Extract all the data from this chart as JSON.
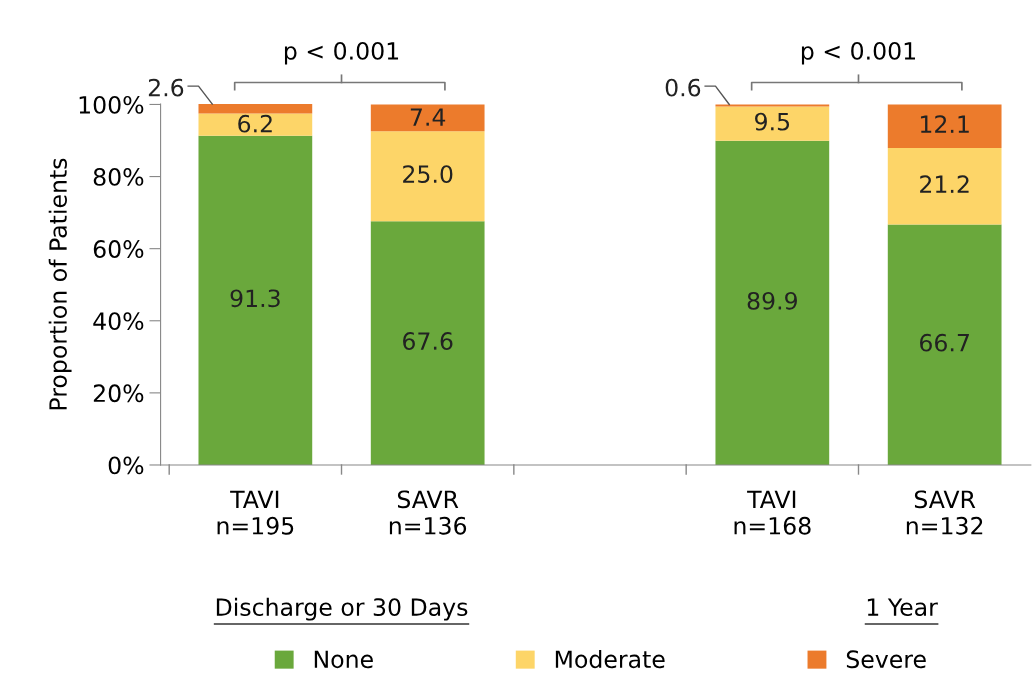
{
  "chart_data": {
    "type": "bar",
    "stacked": true,
    "ylabel": "Proportion of Patients",
    "categories": [
      "TAVI\nn=195",
      "SAVR\nn=136",
      null,
      "TAVI\nn=168",
      "SAVR\nn=132"
    ],
    "series": [
      {
        "name": "None",
        "color": "#6aa83c",
        "values": [
          91.3,
          67.6,
          null,
          89.9,
          66.7
        ],
        "value_labels": [
          "91.3",
          "67.6",
          null,
          "89.9",
          "66.7"
        ]
      },
      {
        "name": "Moderate",
        "color": "#fdd568",
        "values": [
          6.2,
          25.0,
          null,
          9.5,
          21.2
        ],
        "value_labels": [
          "6.2",
          "25.0",
          null,
          "9.5",
          "21.2"
        ]
      },
      {
        "name": "Severe",
        "color": "#ec7b2c",
        "values": [
          2.6,
          7.4,
          null,
          0.6,
          12.1
        ],
        "value_labels": [
          "2.6",
          "7.4",
          null,
          "0.6",
          "12.1"
        ]
      }
    ],
    "ylim": [
      0,
      100.1
    ],
    "yticks": [
      {
        "value": 0,
        "label": "0%"
      },
      {
        "value": 20,
        "label": "20%"
      },
      {
        "value": 40,
        "label": "40%"
      },
      {
        "value": 60,
        "label": "60%"
      },
      {
        "value": 80,
        "label": "80%"
      },
      {
        "value": 100,
        "label": "100%"
      }
    ],
    "annotations": [
      "p < 0.001",
      "p < 0.001",
      "Discharge or 30 Days",
      "1 Year"
    ],
    "legend": "bottom",
    "grid": false
  }
}
